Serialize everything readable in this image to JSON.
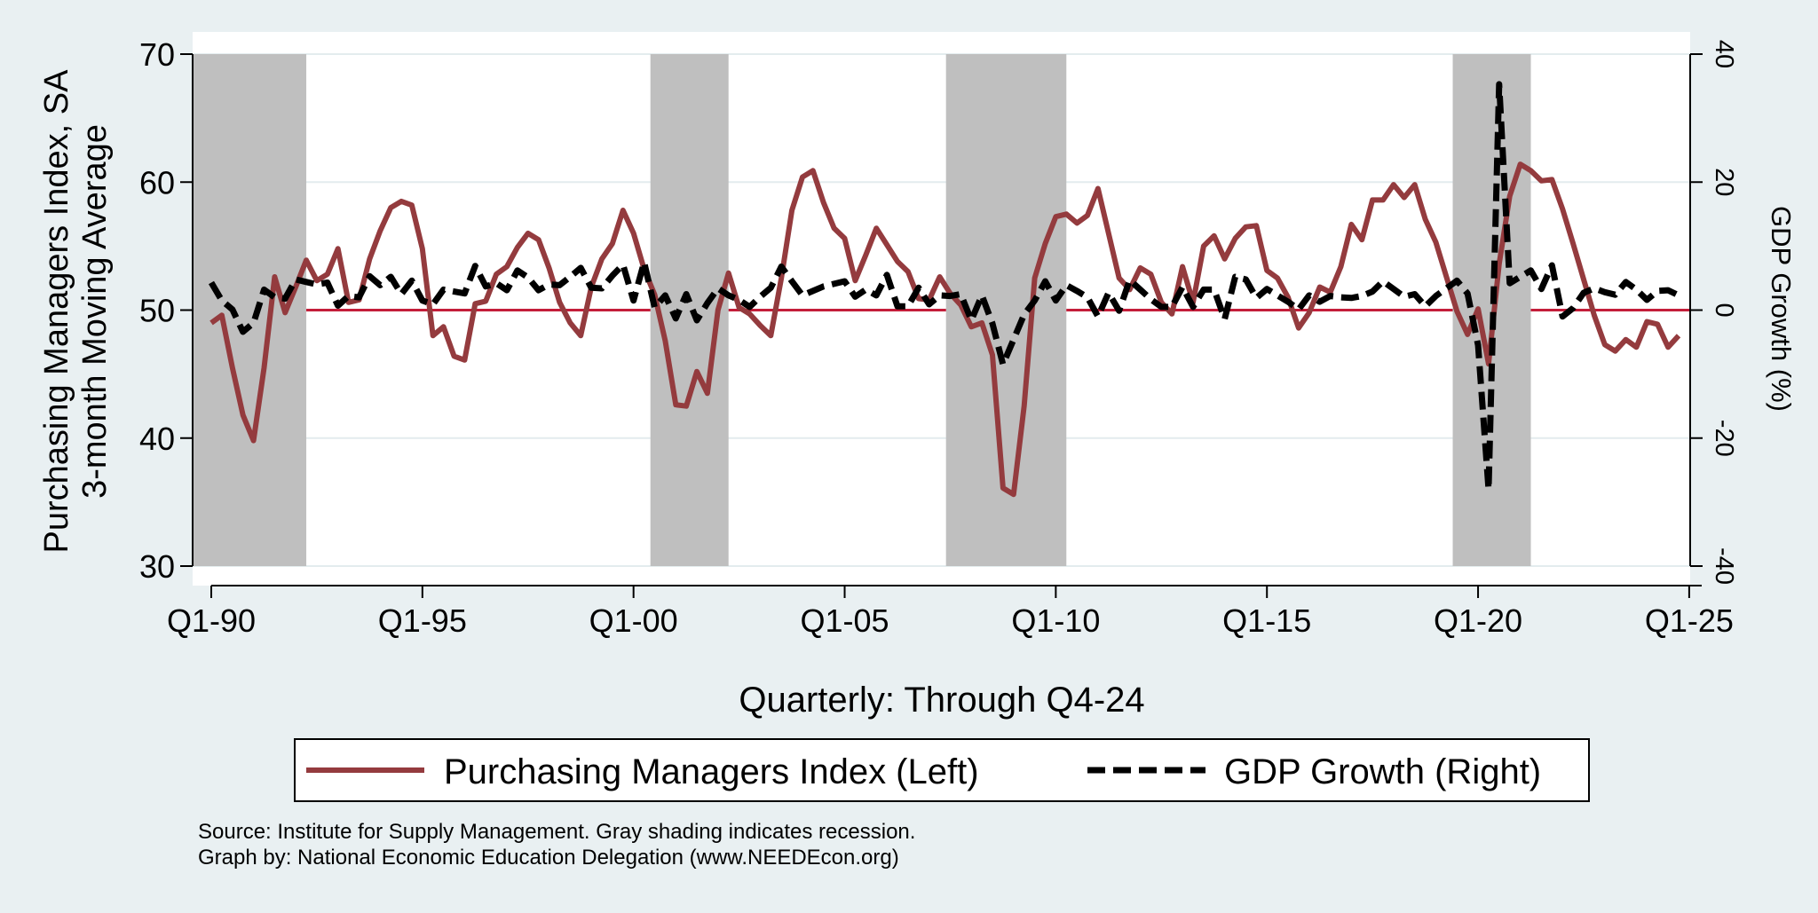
{
  "chart_data": {
    "type": "line",
    "xlabel": "Quarterly: Through Q4-24",
    "ylabel_left": [
      "Purchasing Managers Index, SA",
      "3-month Moving Average"
    ],
    "ylabel_right": "GDP Growth (%)",
    "ylim_left": [
      30,
      70
    ],
    "yticks_left": [
      30,
      40,
      50,
      60,
      70
    ],
    "ylim_right": [
      -40,
      40
    ],
    "yticks_right": [
      -40,
      -20,
      0,
      20,
      40
    ],
    "reference_line_left": 50,
    "x_range": [
      1990.0,
      2024.75
    ],
    "x_ticks": [
      {
        "value": 1990,
        "label": "Q1-90"
      },
      {
        "value": 1995,
        "label": "Q1-95"
      },
      {
        "value": 2000,
        "label": "Q1-00"
      },
      {
        "value": 2005,
        "label": "Q1-05"
      },
      {
        "value": 2010,
        "label": "Q1-10"
      },
      {
        "value": 2015,
        "label": "Q1-15"
      },
      {
        "value": 2020,
        "label": "Q1-20"
      },
      {
        "value": 2025,
        "label": "Q1-25"
      }
    ],
    "recessions": [
      {
        "start": 1989.5,
        "end": 1992.25
      },
      {
        "start": 2000.4,
        "end": 2002.25
      },
      {
        "start": 2007.4,
        "end": 2010.25
      },
      {
        "start": 2019.4,
        "end": 2021.25
      }
    ],
    "series": [
      {
        "name": "Purchasing Managers Index (Left)",
        "axis": "left",
        "color": "#943b3e",
        "style": "solid",
        "points": [
          [
            1990.0,
            49
          ],
          [
            1990.25,
            49.6
          ],
          [
            1990.5,
            45.5
          ],
          [
            1990.75,
            41.8
          ],
          [
            1991.0,
            39.8
          ],
          [
            1991.25,
            45.5
          ],
          [
            1991.5,
            52.6
          ],
          [
            1991.75,
            49.8
          ],
          [
            1992.0,
            51.8
          ],
          [
            1992.25,
            53.9
          ],
          [
            1992.5,
            52.3
          ],
          [
            1992.75,
            52.8
          ],
          [
            1993.0,
            54.8
          ],
          [
            1993.25,
            50.6
          ],
          [
            1993.5,
            50.8
          ],
          [
            1993.75,
            54
          ],
          [
            1994.0,
            56.2
          ],
          [
            1994.25,
            58
          ],
          [
            1994.5,
            58.5
          ],
          [
            1994.75,
            58.2
          ],
          [
            1995.0,
            54.8
          ],
          [
            1995.25,
            48
          ],
          [
            1995.5,
            48.7
          ],
          [
            1995.75,
            46.4
          ],
          [
            1996.0,
            46.1
          ],
          [
            1996.25,
            50.5
          ],
          [
            1996.5,
            50.7
          ],
          [
            1996.75,
            52.8
          ],
          [
            1997.0,
            53.4
          ],
          [
            1997.25,
            54.9
          ],
          [
            1997.5,
            56
          ],
          [
            1997.75,
            55.5
          ],
          [
            1998.0,
            53.3
          ],
          [
            1998.25,
            50.6
          ],
          [
            1998.5,
            49
          ],
          [
            1998.75,
            48
          ],
          [
            1999.0,
            51.8
          ],
          [
            1999.25,
            54
          ],
          [
            1999.5,
            55.2
          ],
          [
            1999.75,
            57.8
          ],
          [
            2000.0,
            56
          ],
          [
            2000.25,
            53.2
          ],
          [
            2000.5,
            51.2
          ],
          [
            2000.75,
            47.6
          ],
          [
            2001.0,
            42.6
          ],
          [
            2001.25,
            42.5
          ],
          [
            2001.5,
            45.2
          ],
          [
            2001.75,
            43.5
          ],
          [
            2002.0,
            50
          ],
          [
            2002.25,
            52.9
          ],
          [
            2002.5,
            50.2
          ],
          [
            2002.75,
            49.7
          ],
          [
            2003.0,
            48.8
          ],
          [
            2003.25,
            48
          ],
          [
            2003.5,
            52.5
          ],
          [
            2003.75,
            57.8
          ],
          [
            2004.0,
            60.4
          ],
          [
            2004.25,
            60.9
          ],
          [
            2004.5,
            58.4
          ],
          [
            2004.75,
            56.4
          ],
          [
            2005.0,
            55.6
          ],
          [
            2005.25,
            52.3
          ],
          [
            2005.5,
            54.3
          ],
          [
            2005.75,
            56.4
          ],
          [
            2006.0,
            55.1
          ],
          [
            2006.25,
            53.8
          ],
          [
            2006.5,
            53
          ],
          [
            2006.75,
            50.9
          ],
          [
            2007.0,
            50.8
          ],
          [
            2007.25,
            52.6
          ],
          [
            2007.5,
            51.3
          ],
          [
            2007.75,
            50.4
          ],
          [
            2008.0,
            48.7
          ],
          [
            2008.25,
            49
          ],
          [
            2008.5,
            46.5
          ],
          [
            2008.75,
            36.1
          ],
          [
            2009.0,
            35.6
          ],
          [
            2009.25,
            42.5
          ],
          [
            2009.5,
            52.5
          ],
          [
            2009.75,
            55.2
          ],
          [
            2010.0,
            57.3
          ],
          [
            2010.25,
            57.5
          ],
          [
            2010.5,
            56.8
          ],
          [
            2010.75,
            57.4
          ],
          [
            2011.0,
            59.5
          ],
          [
            2011.25,
            56
          ],
          [
            2011.5,
            52.5
          ],
          [
            2011.75,
            51.6
          ],
          [
            2012.0,
            53.3
          ],
          [
            2012.25,
            52.8
          ],
          [
            2012.5,
            50.6
          ],
          [
            2012.75,
            49.7
          ],
          [
            2013.0,
            53.4
          ],
          [
            2013.25,
            50.6
          ],
          [
            2013.5,
            55
          ],
          [
            2013.75,
            55.8
          ],
          [
            2014.0,
            54
          ],
          [
            2014.25,
            55.6
          ],
          [
            2014.5,
            56.5
          ],
          [
            2014.75,
            56.6
          ],
          [
            2015.0,
            53.1
          ],
          [
            2015.25,
            52.5
          ],
          [
            2015.5,
            51
          ],
          [
            2015.75,
            48.6
          ],
          [
            2016.0,
            49.8
          ],
          [
            2016.25,
            51.8
          ],
          [
            2016.5,
            51.4
          ],
          [
            2016.75,
            53.4
          ],
          [
            2017.0,
            56.7
          ],
          [
            2017.25,
            55.5
          ],
          [
            2017.5,
            58.6
          ],
          [
            2017.75,
            58.6
          ],
          [
            2018.0,
            59.8
          ],
          [
            2018.25,
            58.8
          ],
          [
            2018.5,
            59.8
          ],
          [
            2018.75,
            57.1
          ],
          [
            2019.0,
            55.3
          ],
          [
            2019.25,
            52.6
          ],
          [
            2019.5,
            49.9
          ],
          [
            2019.75,
            48.1
          ],
          [
            2020.0,
            50.1
          ],
          [
            2020.25,
            45.8
          ],
          [
            2020.5,
            53.6
          ],
          [
            2020.75,
            58.9
          ],
          [
            2021.0,
            61.4
          ],
          [
            2021.25,
            60.9
          ],
          [
            2021.5,
            60.1
          ],
          [
            2021.75,
            60.2
          ],
          [
            2022.0,
            57.9
          ],
          [
            2022.25,
            55.2
          ],
          [
            2022.5,
            52.4
          ],
          [
            2022.75,
            49.6
          ],
          [
            2023.0,
            47.3
          ],
          [
            2023.25,
            46.8
          ],
          [
            2023.5,
            47.7
          ],
          [
            2023.75,
            47.1
          ],
          [
            2024.0,
            49.1
          ],
          [
            2024.25,
            48.9
          ],
          [
            2024.5,
            47.1
          ],
          [
            2024.75,
            48
          ]
        ]
      },
      {
        "name": "GDP Growth (Right)",
        "axis": "right",
        "color": "#000000",
        "style": "dashed",
        "points": [
          [
            1990.0,
            4.3
          ],
          [
            1990.25,
            1.5
          ],
          [
            1990.5,
            0.1
          ],
          [
            1990.75,
            -3.4
          ],
          [
            1991.0,
            -2
          ],
          [
            1991.25,
            3.2
          ],
          [
            1991.5,
            2
          ],
          [
            1991.75,
            1.8
          ],
          [
            1992.0,
            4.8
          ],
          [
            1992.25,
            4.4
          ],
          [
            1992.5,
            4
          ],
          [
            1992.75,
            4.3
          ],
          [
            1993.0,
            0.7
          ],
          [
            1993.25,
            2.2
          ],
          [
            1993.5,
            2
          ],
          [
            1993.75,
            5.3
          ],
          [
            1994.0,
            3.9
          ],
          [
            1994.25,
            5.2
          ],
          [
            1994.5,
            2.5
          ],
          [
            1994.75,
            4.6
          ],
          [
            1995.0,
            1.5
          ],
          [
            1995.25,
            0.9
          ],
          [
            1995.5,
            3.2
          ],
          [
            1995.75,
            2.9
          ],
          [
            1996.0,
            2.6
          ],
          [
            1996.25,
            6.9
          ],
          [
            1996.5,
            3.7
          ],
          [
            1996.75,
            4.2
          ],
          [
            1997.0,
            3.1
          ],
          [
            1997.25,
            6.2
          ],
          [
            1997.5,
            5.1
          ],
          [
            1997.75,
            3.1
          ],
          [
            1998.0,
            4
          ],
          [
            1998.25,
            3.9
          ],
          [
            1998.5,
            5.2
          ],
          [
            1998.75,
            6.6
          ],
          [
            1999.0,
            3.5
          ],
          [
            1999.25,
            3.4
          ],
          [
            1999.5,
            5.4
          ],
          [
            1999.75,
            7.1
          ],
          [
            2000.0,
            1.5
          ],
          [
            2000.25,
            7.5
          ],
          [
            2000.5,
            0.4
          ],
          [
            2000.75,
            2.3
          ],
          [
            2001.0,
            -1.3
          ],
          [
            2001.25,
            2.5
          ],
          [
            2001.5,
            -1.6
          ],
          [
            2001.75,
            1.1
          ],
          [
            2002.0,
            3.4
          ],
          [
            2002.25,
            2.3
          ],
          [
            2002.5,
            1.6
          ],
          [
            2002.75,
            0.5
          ],
          [
            2003.0,
            2.1
          ],
          [
            2003.25,
            3.5
          ],
          [
            2003.5,
            6.8
          ],
          [
            2003.75,
            4.5
          ],
          [
            2004.0,
            2.3
          ],
          [
            2004.25,
            3
          ],
          [
            2004.5,
            3.7
          ],
          [
            2004.75,
            4.1
          ],
          [
            2005.0,
            4.5
          ],
          [
            2005.25,
            2.1
          ],
          [
            2005.5,
            3.2
          ],
          [
            2005.75,
            2.3
          ],
          [
            2006.0,
            5.5
          ],
          [
            2006.25,
            0.6
          ],
          [
            2006.5,
            0.6
          ],
          [
            2006.75,
            3.5
          ],
          [
            2007.0,
            0.9
          ],
          [
            2007.25,
            2.3
          ],
          [
            2007.5,
            2.2
          ],
          [
            2007.75,
            2.5
          ],
          [
            2008.0,
            -1.6
          ],
          [
            2008.25,
            2.3
          ],
          [
            2008.5,
            -2.1
          ],
          [
            2008.75,
            -8.5
          ],
          [
            2009.0,
            -4.6
          ],
          [
            2009.25,
            -0.7
          ],
          [
            2009.5,
            1.5
          ],
          [
            2009.75,
            4.5
          ],
          [
            2010.0,
            1.5
          ],
          [
            2010.25,
            3.9
          ],
          [
            2010.5,
            3
          ],
          [
            2010.75,
            2
          ],
          [
            2011.0,
            -1
          ],
          [
            2011.25,
            2.7
          ],
          [
            2011.5,
            -0.1
          ],
          [
            2011.75,
            4.7
          ],
          [
            2012.0,
            3.2
          ],
          [
            2012.25,
            1.7
          ],
          [
            2012.5,
            0.5
          ],
          [
            2012.75,
            0.5
          ],
          [
            2013.0,
            3.6
          ],
          [
            2013.25,
            0.5
          ],
          [
            2013.5,
            3.2
          ],
          [
            2013.75,
            3.2
          ],
          [
            2014.0,
            -1.4
          ],
          [
            2014.25,
            5.2
          ],
          [
            2014.5,
            4.8
          ],
          [
            2014.75,
            1.9
          ],
          [
            2015.0,
            3.3
          ],
          [
            2015.25,
            2.3
          ],
          [
            2015.5,
            1.3
          ],
          [
            2015.75,
            0.1
          ],
          [
            2016.0,
            2.3
          ],
          [
            2016.25,
            1.3
          ],
          [
            2016.5,
            2.2
          ],
          [
            2016.75,
            2
          ],
          [
            2017.0,
            1.9
          ],
          [
            2017.25,
            2.2
          ],
          [
            2017.5,
            2.9
          ],
          [
            2017.75,
            4.5
          ],
          [
            2018.0,
            3.3
          ],
          [
            2018.25,
            2.1
          ],
          [
            2018.5,
            2.5
          ],
          [
            2018.75,
            0.6
          ],
          [
            2019.0,
            2.2
          ],
          [
            2019.25,
            3.4
          ],
          [
            2019.5,
            4.6
          ],
          [
            2019.75,
            2.6
          ],
          [
            2020.0,
            -5.5
          ],
          [
            2020.25,
            -28
          ],
          [
            2020.5,
            35.3
          ],
          [
            2020.75,
            4.2
          ],
          [
            2021.0,
            5.2
          ],
          [
            2021.25,
            6.2
          ],
          [
            2021.5,
            3.3
          ],
          [
            2021.75,
            7
          ],
          [
            2022.0,
            -1
          ],
          [
            2022.25,
            0.3
          ],
          [
            2022.5,
            2.7
          ],
          [
            2022.75,
            3.4
          ],
          [
            2023.0,
            2.8
          ],
          [
            2023.25,
            2.4
          ],
          [
            2023.5,
            4.4
          ],
          [
            2023.75,
            3.2
          ],
          [
            2024.0,
            1.6
          ],
          [
            2024.25,
            3
          ],
          [
            2024.5,
            3.1
          ],
          [
            2024.75,
            2.3
          ]
        ]
      }
    ],
    "legend": [
      "Purchasing Managers Index (Left)",
      "GDP Growth (Right)"
    ],
    "legend_position": "bottom"
  },
  "notes": {
    "source": "Source: Institute for Supply Management. Gray shading indicates recession.",
    "credit": "Graph by: National Economic Education Delegation (www.NEEDEcon.org)"
  },
  "colors": {
    "background": "#e9f0f2",
    "plot": "#ffffff",
    "recession": "#bfbfbf",
    "reference_line": "#c41e3a",
    "grid": "#e3ecee"
  }
}
